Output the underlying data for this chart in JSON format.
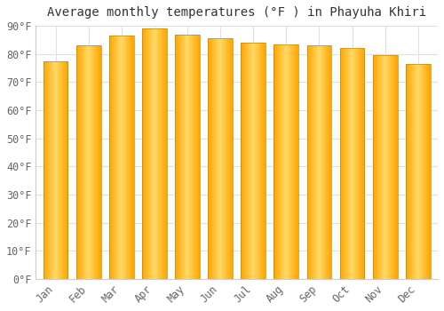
{
  "title": "Average monthly temperatures (°F ) in Phayuha Khiri",
  "months": [
    "Jan",
    "Feb",
    "Mar",
    "Apr",
    "May",
    "Jun",
    "Jul",
    "Aug",
    "Sep",
    "Oct",
    "Nov",
    "Dec"
  ],
  "values": [
    77.5,
    83.0,
    86.5,
    89.0,
    87.0,
    85.5,
    84.0,
    83.5,
    83.0,
    82.0,
    79.5,
    76.5
  ],
  "bar_color_light": "#FFD966",
  "bar_color_dark": "#FFA500",
  "bar_edge_color": "#cc8800",
  "ylim": [
    0,
    90
  ],
  "yticks": [
    0,
    10,
    20,
    30,
    40,
    50,
    60,
    70,
    80,
    90
  ],
  "ytick_labels": [
    "0°F",
    "10°F",
    "20°F",
    "30°F",
    "40°F",
    "50°F",
    "60°F",
    "70°F",
    "80°F",
    "90°F"
  ],
  "background_color": "#ffffff",
  "grid_color": "#e0e0e0",
  "title_fontsize": 10,
  "tick_fontsize": 8.5,
  "bar_width": 0.75
}
